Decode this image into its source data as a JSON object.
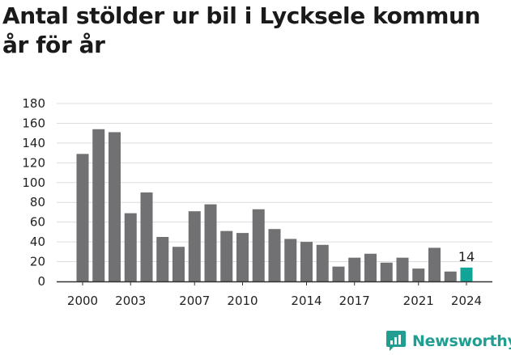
{
  "title": "Antal stölder ur bil i Lycksele kommun år för år",
  "brand": {
    "name": "Newsworthy",
    "icon": "newsworthy-logo-icon",
    "color": "#1f9e91"
  },
  "chart_data": {
    "type": "bar",
    "title": "Antal stölder ur bil i Lycksele kommun år för år",
    "xlabel": "",
    "ylabel": "",
    "categories": [
      "2000",
      "2001",
      "2002",
      "2003",
      "2004",
      "2005",
      "2006",
      "2007",
      "2008",
      "2009",
      "2010",
      "2011",
      "2012",
      "2013",
      "2014",
      "2015",
      "2016",
      "2017",
      "2018",
      "2019",
      "2020",
      "2021",
      "2022",
      "2023",
      "2024"
    ],
    "values": [
      129,
      154,
      151,
      69,
      90,
      45,
      35,
      71,
      78,
      51,
      49,
      73,
      53,
      43,
      40,
      37,
      15,
      24,
      28,
      19,
      24,
      13,
      34,
      10,
      14
    ],
    "x_tick_labels": [
      "2000",
      "2003",
      "2007",
      "2010",
      "2014",
      "2017",
      "2021",
      "2024"
    ],
    "y_ticks": [
      0,
      20,
      40,
      60,
      80,
      100,
      120,
      140,
      160,
      180
    ],
    "ylim": [
      0,
      180
    ],
    "grid": true,
    "legend": "none",
    "highlight": {
      "category": "2024",
      "label": "14"
    },
    "colors": {
      "bar": "#717073",
      "highlight": "#11a597",
      "grid": "#dcdcdc",
      "axis": "#333333"
    }
  }
}
